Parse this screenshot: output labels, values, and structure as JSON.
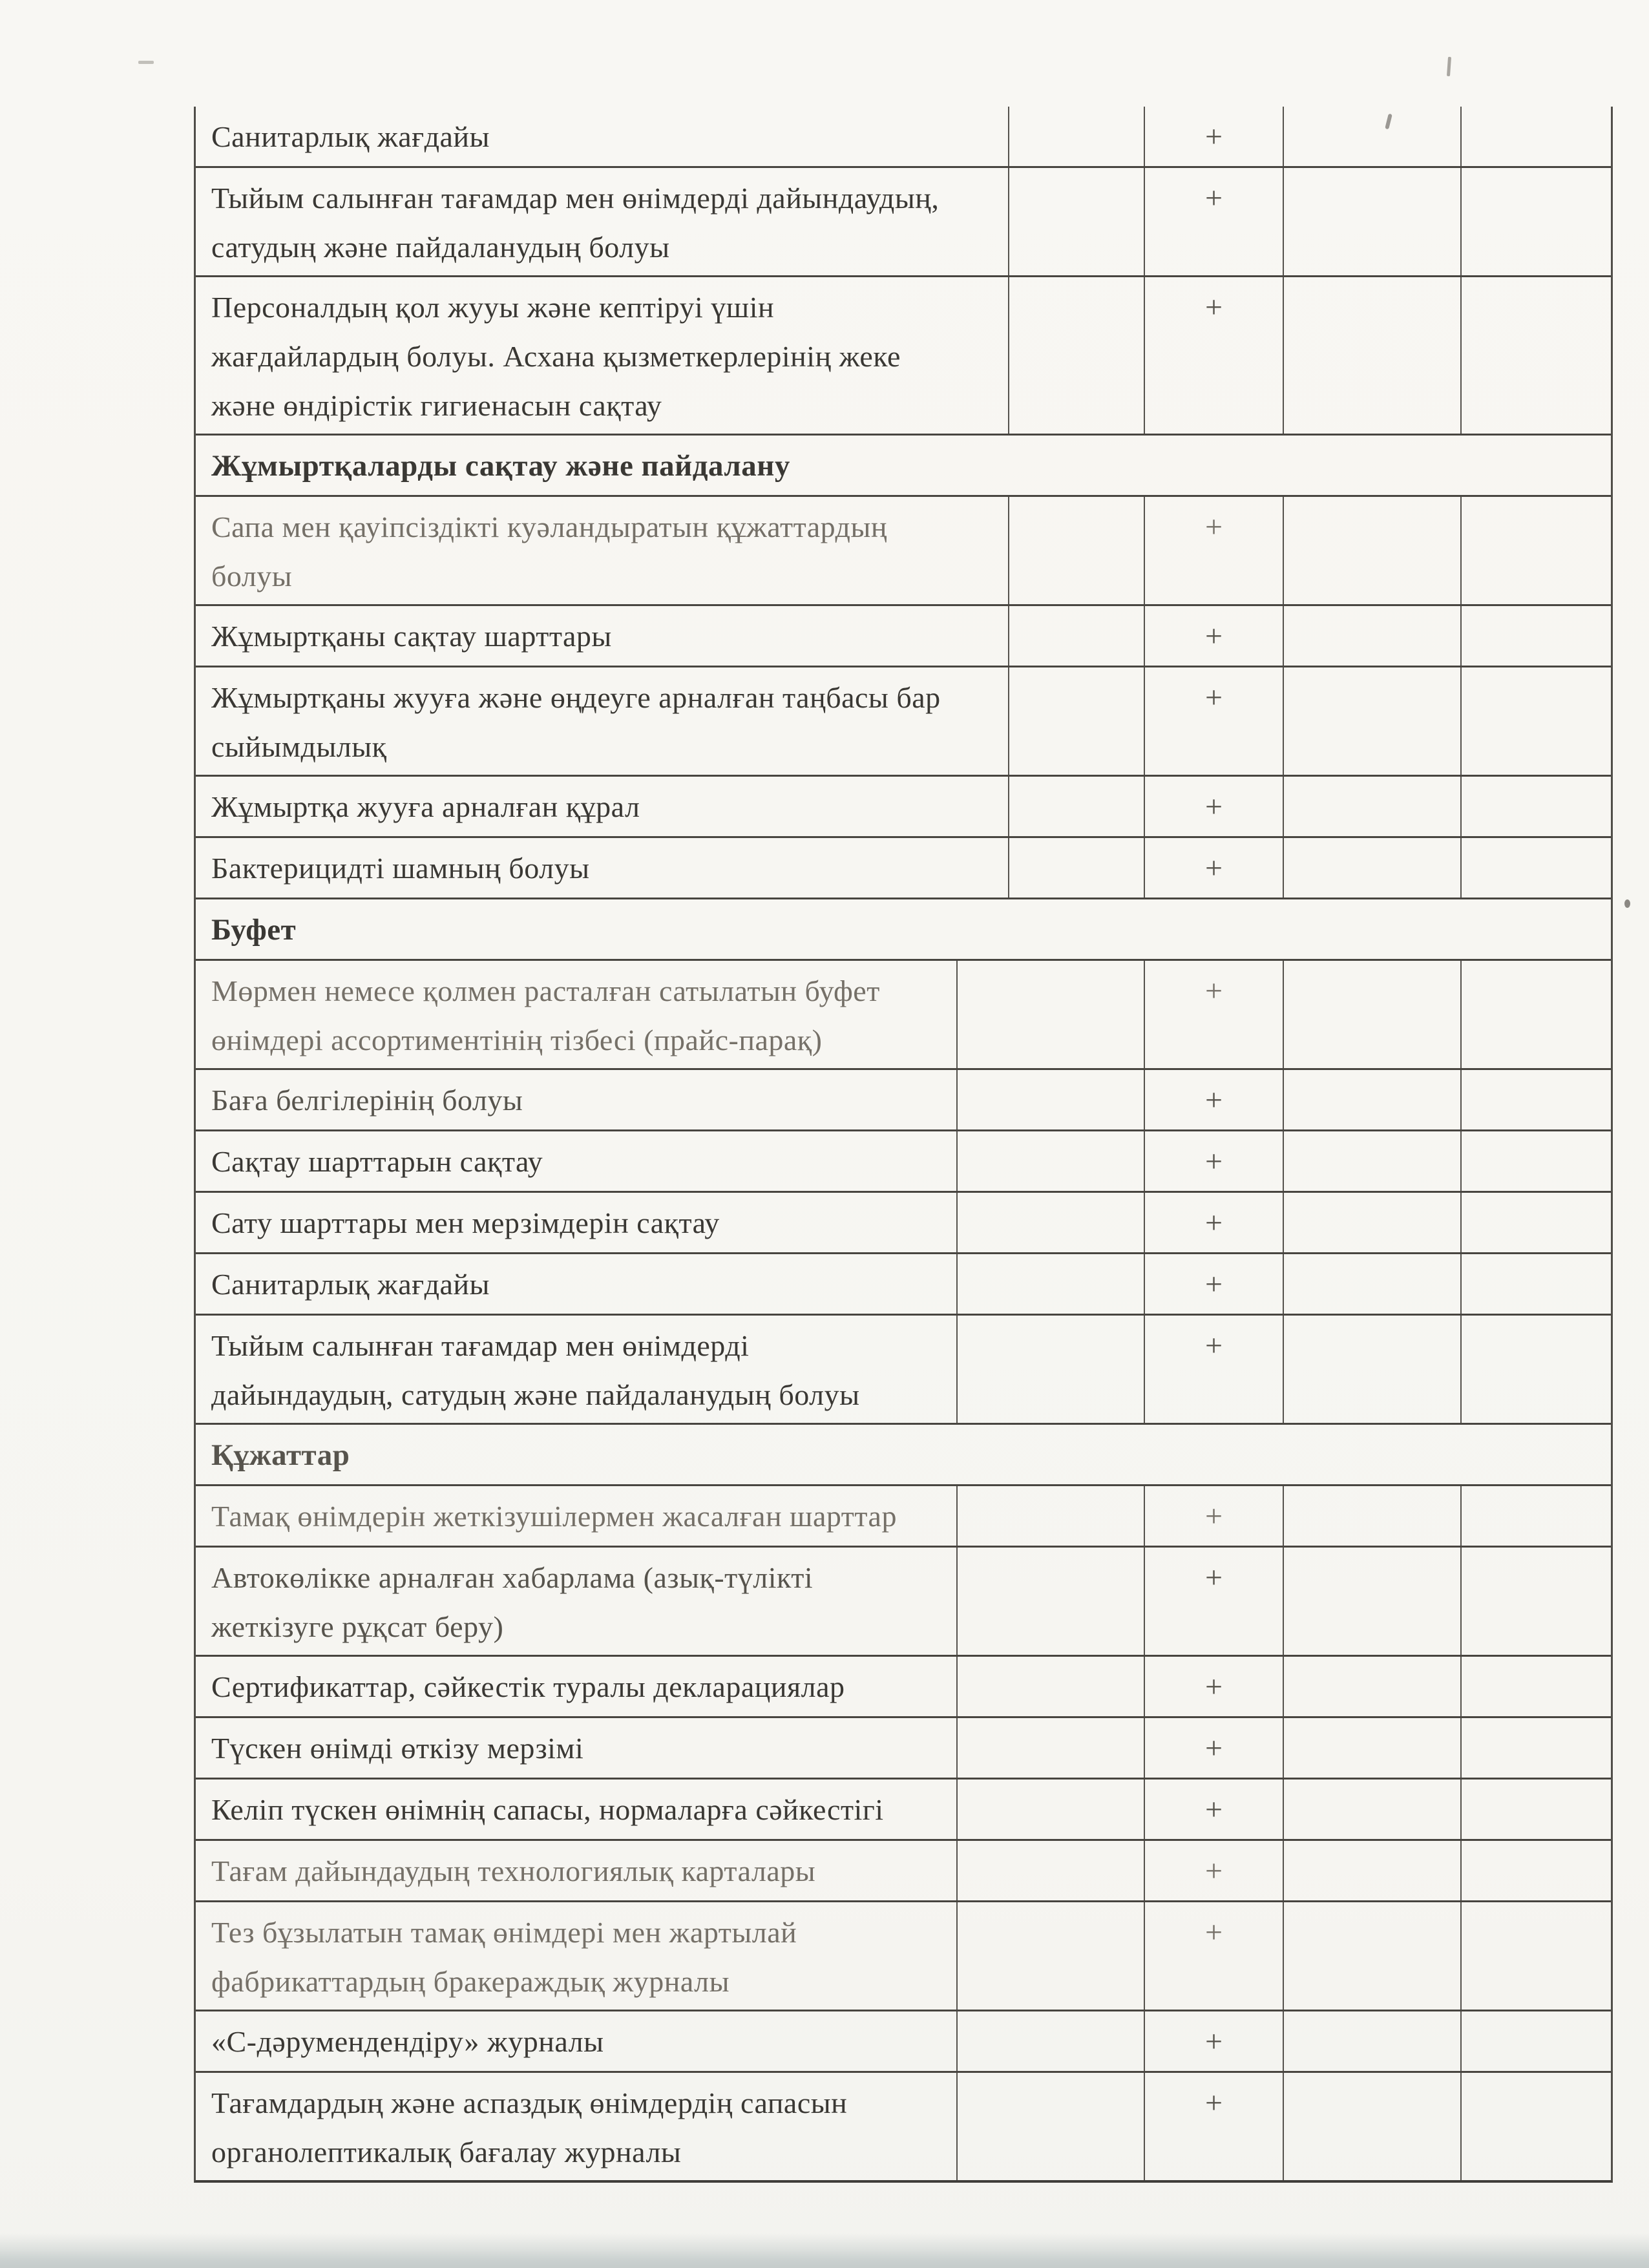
{
  "document": {
    "language": "kk",
    "kind": "sanitary-inspection-checklist-continuation",
    "plus_mark": "+",
    "palette": {
      "paper": "#f7f6f2",
      "ink_dark": "#3a3834",
      "ink_medium": "#57544d",
      "ink_faded": "#757068",
      "line": "#484540",
      "scan_edge": "#c7cecd"
    },
    "sections": [
      {
        "header": null,
        "header_tone": null,
        "rows": [
          {
            "text": "Санитарлық жағдайы",
            "mark": "+",
            "tone": "dark"
          },
          {
            "text": "Тыйым салынған тағамдар мен өнімдерді дайындаудың,\nсатудың және пайдаланудың болуы",
            "mark": "+",
            "tone": "dark"
          },
          {
            "text": "Персоналдың қол жууы және кептіруі үшін\nжағдайлардың болуы. Асхана қызметкерлерінің жеке\nжәне өндірістік гигиенасын сақтау",
            "mark": "+",
            "tone": "dark"
          }
        ]
      },
      {
        "header": "Жұмыртқаларды сақтау және пайдалану",
        "header_tone": "dark",
        "rows": [
          {
            "text": "Сапа мен қауіпсіздікті куәландыратын құжаттардың\nболуы",
            "mark": "+",
            "tone": "faded"
          },
          {
            "text": "Жұмыртқаны сақтау шарттары",
            "mark": "+",
            "tone": "dark"
          },
          {
            "text": "Жұмыртқаны жууға және өңдеуге арналған таңбасы бар\nсыйымдылық",
            "mark": "+",
            "tone": "dark"
          },
          {
            "text": "Жұмыртқа жууға арналған құрал",
            "mark": "+",
            "tone": "dark"
          },
          {
            "text": "Бактерицидті шамның болуы",
            "mark": "+",
            "tone": "dark"
          }
        ]
      },
      {
        "header": "Буфет",
        "header_tone": "dark",
        "rows": [
          {
            "text": "Мөрмен немесе қолмен расталған сатылатын буфет\nөнімдері ассортиментінің тізбесі (прайс-парақ)",
            "mark": "+",
            "tone": "faded"
          },
          {
            "text": "Баға белгілерінің болуы",
            "mark": "+",
            "tone": "medium"
          },
          {
            "text": "Сақтау шарттарын сақтау",
            "mark": "+",
            "tone": "dark"
          },
          {
            "text": "Сату шарттары мен мерзімдерін сақтау",
            "mark": "+",
            "tone": "dark"
          },
          {
            "text": "Санитарлық жағдайы",
            "mark": "+",
            "tone": "dark"
          },
          {
            "text": "Тыйым салынған тағамдар мен өнімдерді\nдайындаудың, сатудың және пайдаланудың болуы",
            "mark": "+",
            "tone": "dark"
          }
        ]
      },
      {
        "header": "Құжаттар",
        "header_tone": "medium",
        "rows": [
          {
            "text": "Тамақ өнімдерін жеткізушілермен жасалған шарттар",
            "mark": "+",
            "tone": "faded"
          },
          {
            "text": "Автокөлікке арналған хабарлама (азық-түлікті\nжеткізуге рұқсат беру)",
            "mark": "+",
            "tone": "medium"
          },
          {
            "text": "Сертификаттар, сәйкестік туралы декларациялар",
            "mark": "+",
            "tone": "dark"
          },
          {
            "text": "Түскен өнімді өткізу мерзімі",
            "mark": "+",
            "tone": "dark"
          },
          {
            "text": "Келіп түскен өнімнің сапасы, нормаларға сәйкестігі",
            "mark": "+",
            "tone": "dark"
          },
          {
            "text": "Тағам дайындаудың технологиялық карталары",
            "mark": "+",
            "tone": "faded"
          },
          {
            "text": "Тез бұзылатын тамақ өнімдері мен жартылай\nфабрикаттардың бракераждық журналы",
            "mark": "+",
            "tone": "faded"
          },
          {
            "text": "«С-дәрумендендіру» журналы",
            "mark": "+",
            "tone": "dark"
          },
          {
            "text": "Тағамдардың және аспаздық өнімдердің сапасын\nорганолептикалық бағалау журналы",
            "mark": "+",
            "tone": "dark"
          }
        ]
      }
    ]
  }
}
